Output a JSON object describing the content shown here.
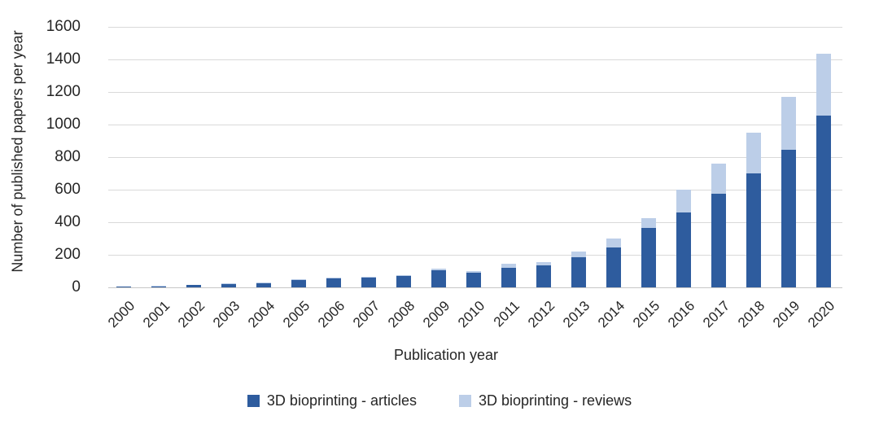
{
  "chart_data": {
    "type": "bar",
    "stacked": true,
    "title": "",
    "xlabel": "Publication year",
    "ylabel": "Number of published papers per year",
    "categories": [
      "2000",
      "2001",
      "2002",
      "2003",
      "2004",
      "2005",
      "2006",
      "2007",
      "2008",
      "2009",
      "2010",
      "2011",
      "2012",
      "2013",
      "2014",
      "2015",
      "2016",
      "2017",
      "2018",
      "2019",
      "2020"
    ],
    "series": [
      {
        "name": "3D bioprinting - articles",
        "color": "#2e5c9e",
        "values": [
          4,
          7,
          15,
          20,
          27,
          45,
          55,
          60,
          68,
          105,
          92,
          118,
          135,
          185,
          245,
          365,
          460,
          575,
          700,
          845,
          1055
        ]
      },
      {
        "name": "3D bioprinting - reviews",
        "color": "#bccee8",
        "values": [
          1,
          1,
          2,
          3,
          3,
          3,
          4,
          4,
          5,
          10,
          8,
          25,
          18,
          35,
          55,
          60,
          140,
          185,
          250,
          325,
          380
        ]
      }
    ],
    "totals": [
      5,
      8,
      17,
      23,
      30,
      48,
      59,
      64,
      73,
      115,
      100,
      143,
      153,
      220,
      300,
      425,
      600,
      760,
      950,
      1170,
      1435
    ],
    "ylim": [
      0,
      1600
    ],
    "yticks": [
      0,
      200,
      400,
      600,
      800,
      1000,
      1200,
      1400,
      1600
    ],
    "grid": true,
    "gridline_color": "#d9d9d9",
    "legend_position": "bottom"
  }
}
